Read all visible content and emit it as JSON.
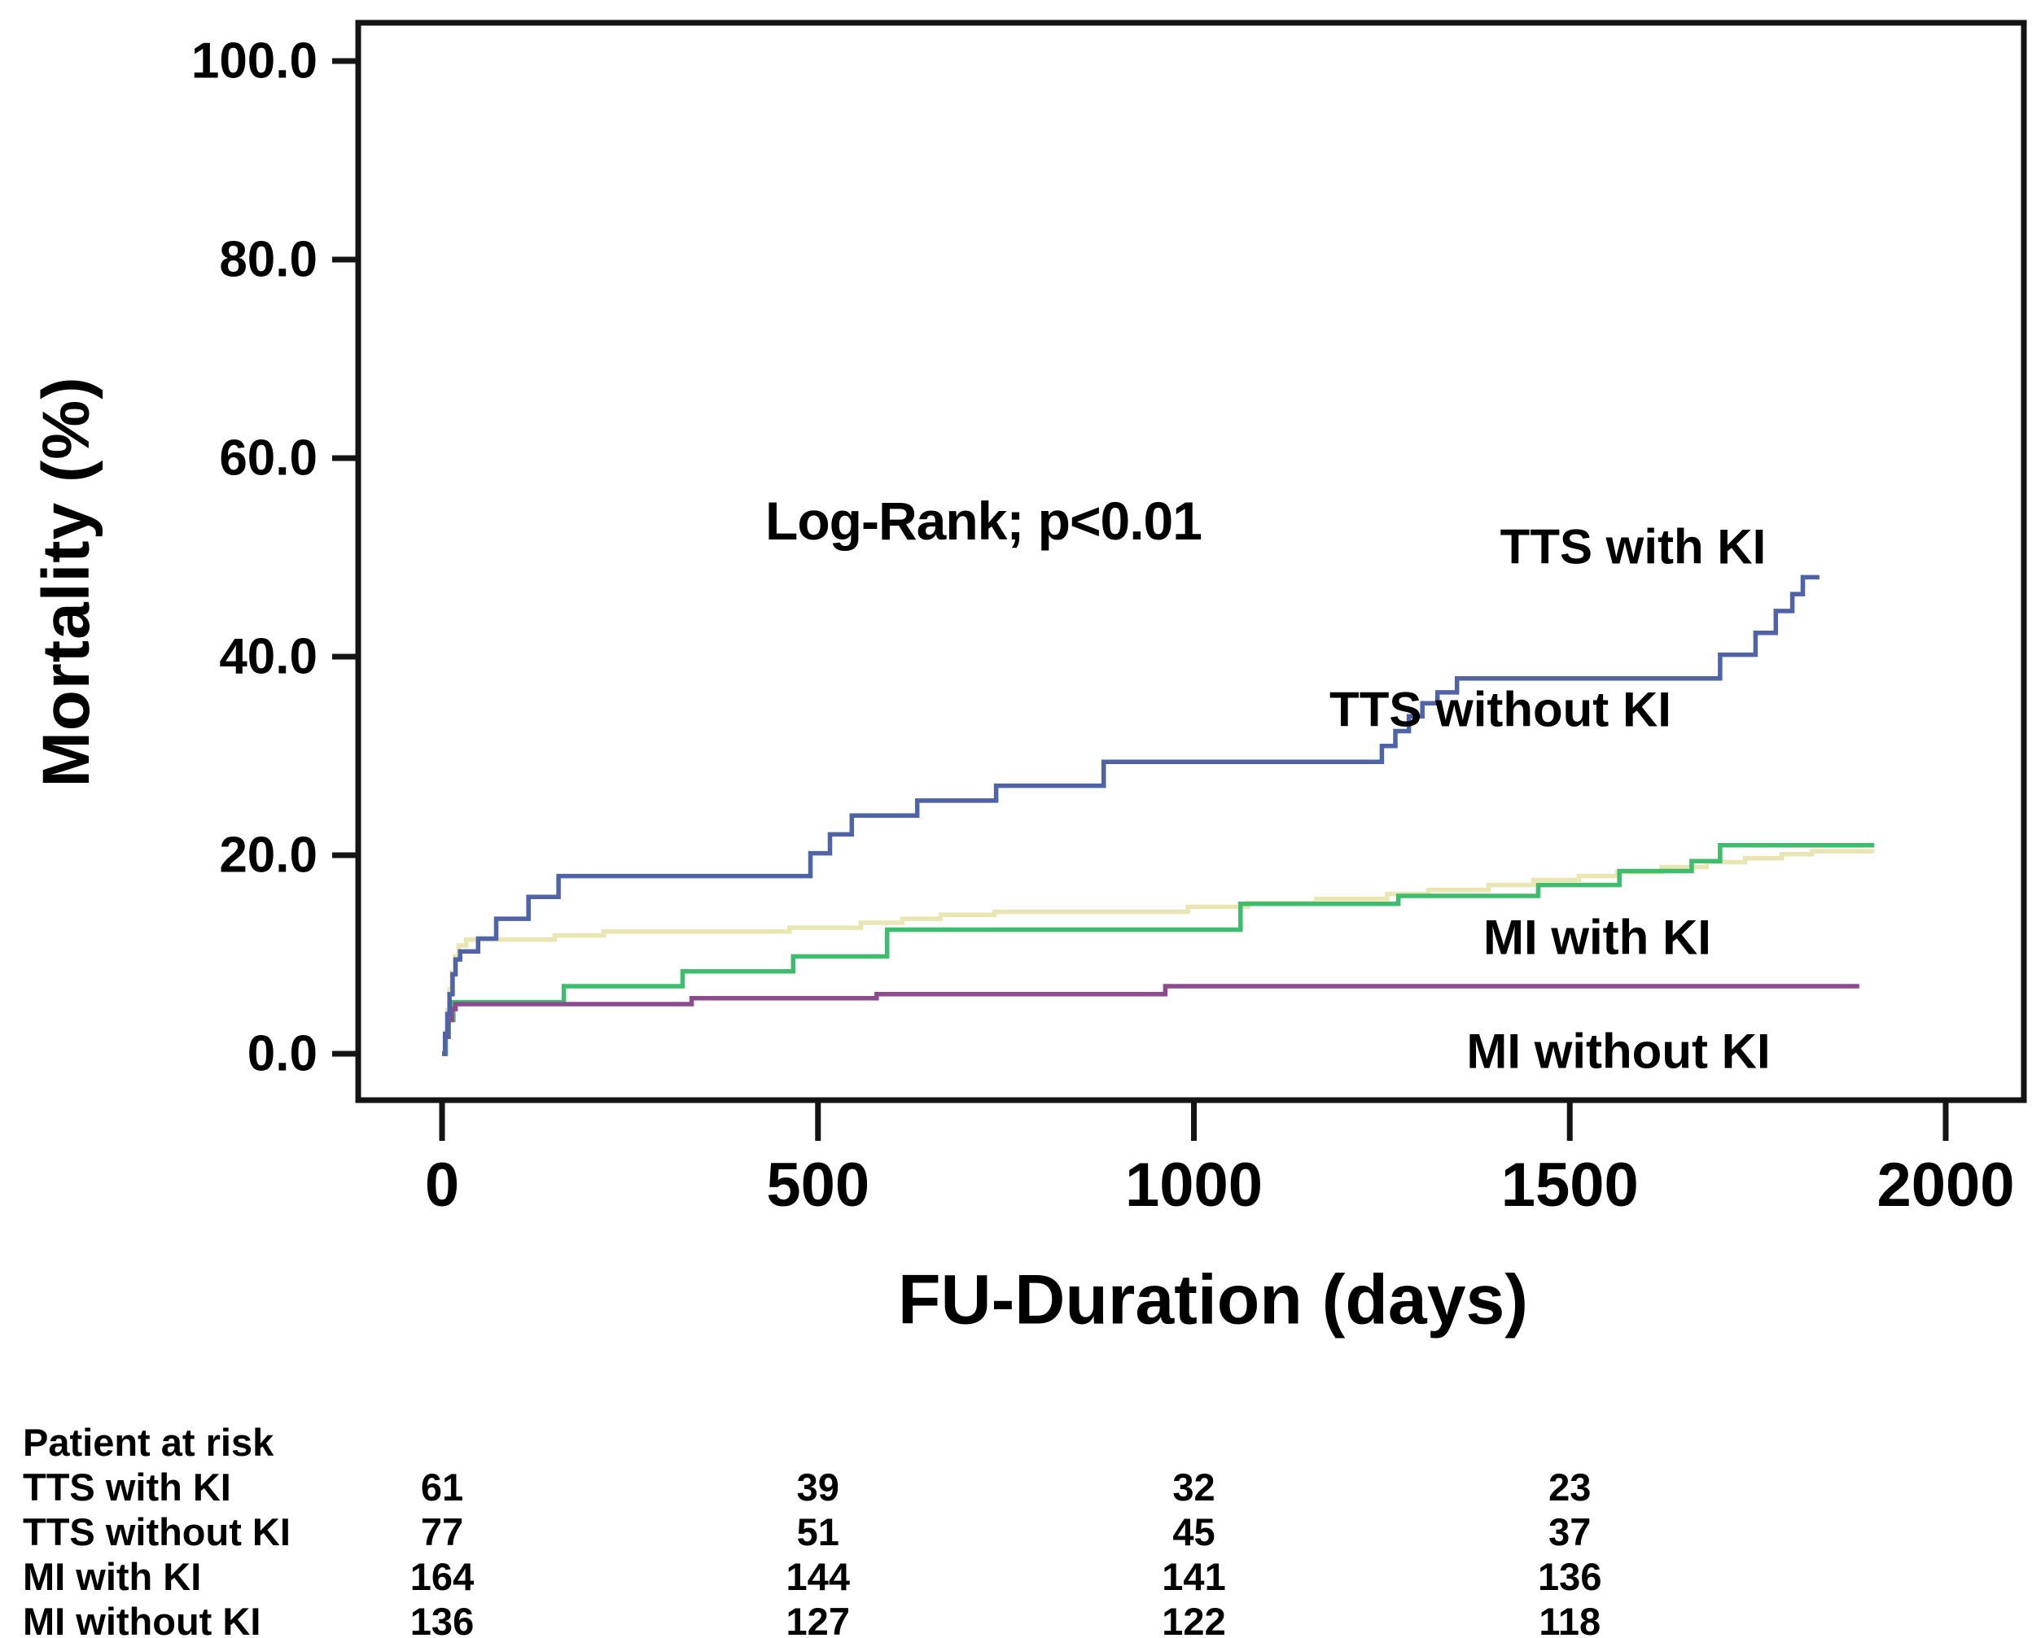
{
  "figure": {
    "annotation": "Log-Rank; p<0.01"
  },
  "chart_data": {
    "type": "line",
    "subtype": "kaplan-meier-step",
    "title": "",
    "xlabel": "FU-Duration (days)",
    "ylabel": "Mortality (%)",
    "xlim": [
      0,
      2100
    ],
    "ylim": [
      0,
      104
    ],
    "grid": false,
    "legend_position": "curve-end-labels",
    "x_ticks": [
      0,
      500,
      1000,
      1500,
      2000
    ],
    "x_tick_labels": [
      "0",
      "500",
      "1000",
      "1500",
      "2000"
    ],
    "y_ticks": [
      0,
      20,
      40,
      60,
      80,
      100
    ],
    "y_tick_labels": [
      "0.0",
      "20.0",
      "40.0",
      "60.0",
      "80.0",
      "100.0"
    ],
    "axis_color": "#141414",
    "series": [
      {
        "name": "TTS with KI",
        "color": "#4e63a8",
        "points": [
          [
            0,
            0
          ],
          [
            4,
            2
          ],
          [
            7,
            4
          ],
          [
            10,
            6
          ],
          [
            14,
            8
          ],
          [
            18,
            9.5
          ],
          [
            24,
            10.3
          ],
          [
            48,
            11.6
          ],
          [
            72,
            13.6
          ],
          [
            115,
            15.8
          ],
          [
            155,
            17.9
          ],
          [
            490,
            20.2
          ],
          [
            516,
            22.1
          ],
          [
            545,
            24.0
          ],
          [
            632,
            25.5
          ],
          [
            737,
            27.0
          ],
          [
            880,
            29.4
          ],
          [
            1250,
            31.0
          ],
          [
            1268,
            32.5
          ],
          [
            1286,
            34.0
          ],
          [
            1304,
            35.3
          ],
          [
            1324,
            36.4
          ],
          [
            1350,
            37.8
          ],
          [
            1700,
            40.2
          ],
          [
            1747,
            42.4
          ],
          [
            1774,
            44.6
          ],
          [
            1796,
            46.3
          ],
          [
            1810,
            48.0
          ],
          [
            1832,
            48.0
          ]
        ]
      },
      {
        "name": "TTS without KI",
        "color": "#3dbd6d",
        "points": [
          [
            0,
            0
          ],
          [
            5,
            1.7
          ],
          [
            9,
            3.4
          ],
          [
            15,
            5.2
          ],
          [
            162,
            6.8
          ],
          [
            320,
            8.3
          ],
          [
            467,
            9.8
          ],
          [
            592,
            12.5
          ],
          [
            1062,
            15.1
          ],
          [
            1272,
            15.9
          ],
          [
            1458,
            17.0
          ],
          [
            1566,
            18.4
          ],
          [
            1662,
            19.4
          ],
          [
            1700,
            21.0
          ],
          [
            1905,
            21.0
          ]
        ]
      },
      {
        "name": "MI with KI",
        "color": "#eae6b1",
        "points": [
          [
            0,
            0
          ],
          [
            4,
            2.2
          ],
          [
            7,
            4.4
          ],
          [
            10,
            6.5
          ],
          [
            13,
            8.2
          ],
          [
            17,
            9.8
          ],
          [
            22,
            10.9
          ],
          [
            32,
            11.5
          ],
          [
            150,
            11.9
          ],
          [
            215,
            12.3
          ],
          [
            462,
            12.7
          ],
          [
            557,
            13.2
          ],
          [
            612,
            13.6
          ],
          [
            663,
            14.0
          ],
          [
            735,
            14.3
          ],
          [
            992,
            14.8
          ],
          [
            1072,
            15.2
          ],
          [
            1163,
            15.6
          ],
          [
            1257,
            16.1
          ],
          [
            1312,
            16.5
          ],
          [
            1392,
            17.0
          ],
          [
            1452,
            17.5
          ],
          [
            1512,
            17.9
          ],
          [
            1563,
            18.3
          ],
          [
            1622,
            18.8
          ],
          [
            1682,
            19.3
          ],
          [
            1733,
            19.7
          ],
          [
            1782,
            20.1
          ],
          [
            1822,
            20.4
          ],
          [
            1905,
            20.4
          ]
        ]
      },
      {
        "name": "MI without KI",
        "color": "#8d4a91",
        "points": [
          [
            0,
            0
          ],
          [
            4,
            1.7
          ],
          [
            8,
            3.4
          ],
          [
            13,
            4.5
          ],
          [
            18,
            5.0
          ],
          [
            332,
            5.6
          ],
          [
            578,
            6.0
          ],
          [
            962,
            6.8
          ],
          [
            1885,
            6.8
          ]
        ]
      }
    ]
  },
  "risk_table": {
    "title": "Patient at risk",
    "time_points": [
      0,
      500,
      1000,
      1500
    ],
    "rows": [
      {
        "label": "TTS with KI",
        "counts": [
          "61",
          "39",
          "32",
          "23"
        ]
      },
      {
        "label": "TTS without KI",
        "counts": [
          "77",
          "51",
          "45",
          "37"
        ]
      },
      {
        "label": "MI with KI",
        "counts": [
          "164",
          "144",
          "141",
          "136"
        ]
      },
      {
        "label": "MI without KI",
        "counts": [
          "136",
          "127",
          "122",
          "118"
        ]
      }
    ]
  }
}
